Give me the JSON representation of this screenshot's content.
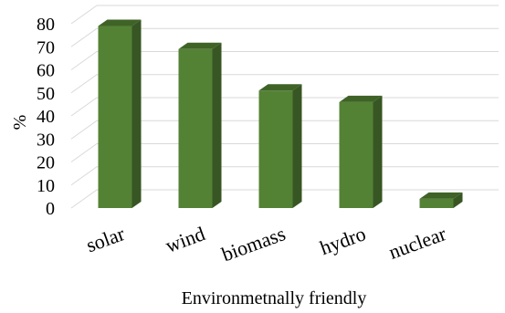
{
  "chart_data": {
    "type": "bar",
    "style": "3d-column",
    "categories": [
      "solar",
      "wind",
      "biomass",
      "hydro",
      "nuclear"
    ],
    "series": [
      {
        "values": [
          79,
          69,
          51,
          46,
          4
        ]
      }
    ],
    "xlabel": "Environmetnally friendly",
    "ylabel": "%",
    "ylim": [
      0,
      80
    ],
    "yticks": [
      0,
      10,
      20,
      30,
      40,
      50,
      60,
      70,
      80
    ],
    "grid": true,
    "legend": "none",
    "colors": {
      "front": "#548235",
      "side": "#375623",
      "top": "#3f6327"
    }
  }
}
